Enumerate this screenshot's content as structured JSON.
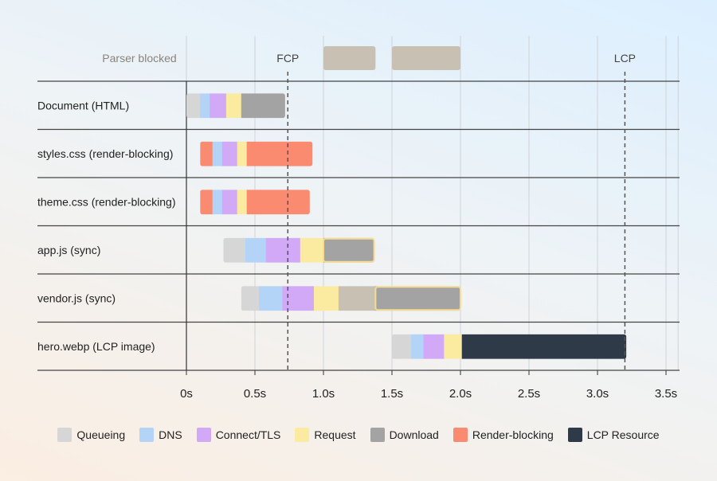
{
  "chart_data": {
    "type": "waterfall",
    "x_unit": "s",
    "xlim": [
      0,
      3.6
    ],
    "x_ticks": [
      "0s",
      "0.5s",
      "1.0s",
      "1.5s",
      "2.0s",
      "2.5s",
      "3.0s",
      "3.5s"
    ],
    "x_tick_values": [
      0,
      0.5,
      1.0,
      1.5,
      2.0,
      2.5,
      3.0,
      3.5
    ],
    "grid": true,
    "legend_placement": "bottom",
    "phase_colors": {
      "Queueing": "#d6d6d6",
      "DNS": "#b3d4f7",
      "Connect/TLS": "#d1a9f7",
      "Request": "#fbeba1",
      "Download": "#a3a3a3",
      "Render-blocking": "#fa8a70",
      "LCP Resource": "#2f3a48",
      "Parser blocked": "#c9c0b4"
    },
    "legend": [
      "Queueing",
      "DNS",
      "Connect/TLS",
      "Request",
      "Download",
      "Render-blocking",
      "LCP Resource"
    ],
    "parser_blocked": {
      "label": "Parser blocked",
      "ranges": [
        [
          1.0,
          1.38
        ],
        [
          1.5,
          2.0
        ]
      ]
    },
    "markers": [
      {
        "label": "FCP",
        "x": 0.74
      },
      {
        "label": "LCP",
        "x": 3.2
      }
    ],
    "rows": [
      {
        "label": "Document (HTML)",
        "outlined": false,
        "segments": [
          [
            "Queueing",
            0.0,
            0.1
          ],
          [
            "DNS",
            0.1,
            0.17
          ],
          [
            "Connect/TLS",
            0.17,
            0.29
          ],
          [
            "Request",
            0.29,
            0.4
          ],
          [
            "Download",
            0.4,
            0.72
          ]
        ]
      },
      {
        "label": "styles.css (render-blocking)",
        "outlined": false,
        "segments": [
          [
            "Render-blocking",
            0.1,
            0.19
          ],
          [
            "DNS",
            0.19,
            0.26
          ],
          [
            "Connect/TLS",
            0.26,
            0.37
          ],
          [
            "Request",
            0.37,
            0.44
          ],
          [
            "Render-blocking",
            0.44,
            0.92
          ]
        ]
      },
      {
        "label": "theme.css (render-blocking)",
        "outlined": false,
        "segments": [
          [
            "Render-blocking",
            0.1,
            0.19
          ],
          [
            "DNS",
            0.19,
            0.26
          ],
          [
            "Connect/TLS",
            0.26,
            0.37
          ],
          [
            "Request",
            0.37,
            0.44
          ],
          [
            "Render-blocking",
            0.44,
            0.9
          ]
        ]
      },
      {
        "label": "app.js (sync)",
        "outlined": true,
        "segments": [
          [
            "Queueing",
            0.27,
            0.43
          ],
          [
            "DNS",
            0.43,
            0.58
          ],
          [
            "Connect/TLS",
            0.58,
            0.83
          ],
          [
            "Request",
            0.83,
            1.0
          ],
          [
            "Download",
            1.0,
            1.37
          ]
        ]
      },
      {
        "label": "vendor.js (sync)",
        "outlined": true,
        "segments": [
          [
            "Queueing",
            0.4,
            0.53
          ],
          [
            "DNS",
            0.53,
            0.7
          ],
          [
            "Connect/TLS",
            0.7,
            0.93
          ],
          [
            "Request",
            0.93,
            1.11
          ],
          [
            "Parser blocked",
            1.11,
            1.38
          ],
          [
            "Download",
            1.38,
            2.0
          ]
        ]
      },
      {
        "label": "hero.webp (LCP image)",
        "outlined": false,
        "segments": [
          [
            "Queueing",
            1.5,
            1.64
          ],
          [
            "DNS",
            1.64,
            1.73
          ],
          [
            "Connect/TLS",
            1.73,
            1.88
          ],
          [
            "Request",
            1.88,
            2.01
          ],
          [
            "LCP Resource",
            2.01,
            3.21
          ]
        ]
      }
    ]
  }
}
